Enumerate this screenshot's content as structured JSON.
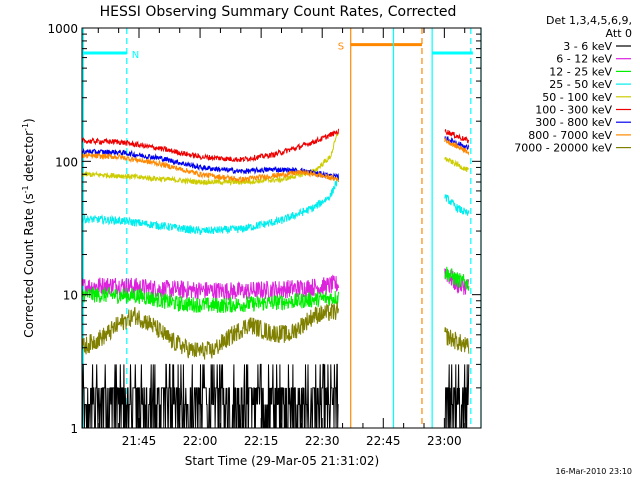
{
  "chart_data": {
    "type": "line",
    "title": "HESSI Observing Summary Count Rates, Corrected",
    "xlabel": "Start Time (29-Mar-05 21:31:02)",
    "ylabel_main": "Corrected Count Rate (s",
    "ylabel_sup1": "-1",
    "ylabel_mid": " detector",
    "ylabel_sup2": "-1",
    "ylabel_end": ")",
    "yscale": "log",
    "ylim": [
      1,
      1000
    ],
    "xlim_min": [
      31,
      129
    ],
    "x_ticks": [
      {
        "min": 45,
        "label": "21:45"
      },
      {
        "min": 60,
        "label": "22:00"
      },
      {
        "min": 75,
        "label": "22:15"
      },
      {
        "min": 90,
        "label": "22:30"
      },
      {
        "min": 105,
        "label": "22:45"
      },
      {
        "min": 120,
        "label": "23:00"
      }
    ],
    "y_ticks": [
      {
        "value": 1,
        "label": "1"
      },
      {
        "value": 10,
        "label": "10"
      },
      {
        "value": 100,
        "label": "100"
      },
      {
        "value": 1000,
        "label": "1000"
      }
    ],
    "legend_header": [
      "Det 1,3,4,5,6,9,",
      "Att 0"
    ],
    "legend_position": "right",
    "series": [
      {
        "name": "3 - 6 keV",
        "color": "#000000",
        "noise": 1.0,
        "points": [
          [
            31,
            1.6
          ],
          [
            37,
            1.5
          ],
          [
            45,
            1.6
          ],
          [
            55,
            1.4
          ],
          [
            65,
            1.5
          ],
          [
            75,
            1.6
          ],
          [
            85,
            1.5
          ],
          [
            94,
            1.7
          ],
          [
            95,
            null
          ],
          [
            119,
            null
          ],
          [
            120,
            1.5
          ],
          [
            126,
            1.6
          ]
        ]
      },
      {
        "name": "6 - 12 keV",
        "color": "#dd22dd",
        "noise": 0.07,
        "points": [
          [
            31,
            11.5
          ],
          [
            40,
            11.8
          ],
          [
            50,
            11
          ],
          [
            60,
            10.8
          ],
          [
            70,
            10.6
          ],
          [
            80,
            11
          ],
          [
            90,
            11.5
          ],
          [
            94,
            12
          ],
          [
            95,
            null
          ],
          [
            119,
            null
          ],
          [
            120,
            15
          ],
          [
            123,
            12
          ],
          [
            126,
            11.5
          ]
        ]
      },
      {
        "name": "12 - 25 keV",
        "color": "#00ee00",
        "noise": 0.06,
        "points": [
          [
            31,
            10
          ],
          [
            45,
            9.8
          ],
          [
            55,
            8.5
          ],
          [
            65,
            8.3
          ],
          [
            75,
            8.6
          ],
          [
            85,
            9
          ],
          [
            94,
            9.6
          ],
          [
            95,
            null
          ],
          [
            119,
            null
          ],
          [
            120,
            15
          ],
          [
            123,
            13
          ],
          [
            126,
            12
          ]
        ]
      },
      {
        "name": "25 - 50 keV",
        "color": "#00eeee",
        "noise": 0.03,
        "points": [
          [
            31,
            37
          ],
          [
            40,
            36
          ],
          [
            50,
            33
          ],
          [
            60,
            30
          ],
          [
            70,
            31
          ],
          [
            80,
            36
          ],
          [
            88,
            45
          ],
          [
            92,
            55
          ],
          [
            94,
            75
          ],
          [
            95,
            null
          ],
          [
            119,
            null
          ],
          [
            120,
            55
          ],
          [
            123,
            45
          ],
          [
            126,
            40
          ]
        ]
      },
      {
        "name": "50 - 100 keV",
        "color": "#cccc00",
        "noise": 0.02,
        "points": [
          [
            31,
            80
          ],
          [
            40,
            78
          ],
          [
            50,
            74
          ],
          [
            60,
            70
          ],
          [
            70,
            70
          ],
          [
            80,
            73
          ],
          [
            88,
            84
          ],
          [
            92,
            108
          ],
          [
            94,
            170
          ],
          [
            95,
            null
          ],
          [
            119,
            null
          ],
          [
            120,
            105
          ],
          [
            123,
            95
          ],
          [
            126,
            85
          ]
        ]
      },
      {
        "name": "100 - 300 keV",
        "color": "#ee0000",
        "noise": 0.02,
        "points": [
          [
            31,
            142
          ],
          [
            40,
            140
          ],
          [
            50,
            125
          ],
          [
            60,
            108
          ],
          [
            70,
            103
          ],
          [
            78,
            112
          ],
          [
            85,
            130
          ],
          [
            90,
            148
          ],
          [
            94,
            168
          ],
          [
            95,
            null
          ],
          [
            119,
            null
          ],
          [
            120,
            170
          ],
          [
            123,
            155
          ],
          [
            126,
            142
          ]
        ]
      },
      {
        "name": "300 - 800 keV",
        "color": "#0000ee",
        "noise": 0.02,
        "points": [
          [
            31,
            118
          ],
          [
            40,
            117
          ],
          [
            50,
            106
          ],
          [
            60,
            90
          ],
          [
            70,
            84
          ],
          [
            78,
            87
          ],
          [
            85,
            85
          ],
          [
            90,
            80
          ],
          [
            94,
            76
          ],
          [
            95,
            null
          ],
          [
            119,
            null
          ],
          [
            120,
            150
          ],
          [
            123,
            138
          ],
          [
            126,
            125
          ]
        ]
      },
      {
        "name": "800 - 7000 keV",
        "color": "#ff8800",
        "noise": 0.02,
        "points": [
          [
            31,
            110
          ],
          [
            40,
            108
          ],
          [
            50,
            96
          ],
          [
            60,
            80
          ],
          [
            70,
            73
          ],
          [
            78,
            78
          ],
          [
            85,
            83
          ],
          [
            90,
            78
          ],
          [
            94,
            73
          ],
          [
            95,
            null
          ],
          [
            119,
            null
          ],
          [
            120,
            145
          ],
          [
            123,
            130
          ],
          [
            126,
            118
          ]
        ]
      },
      {
        "name": "7000 - 20000 keV",
        "color": "#808000",
        "noise": 0.07,
        "points": [
          [
            31,
            4
          ],
          [
            37,
            5
          ],
          [
            40,
            6
          ],
          [
            44,
            7
          ],
          [
            48,
            6
          ],
          [
            53,
            4.5
          ],
          [
            58,
            3.8
          ],
          [
            63,
            3.8
          ],
          [
            68,
            5
          ],
          [
            72,
            6
          ],
          [
            77,
            5.2
          ],
          [
            82,
            5
          ],
          [
            88,
            7
          ],
          [
            94,
            7.5
          ],
          [
            95,
            null
          ],
          [
            119,
            null
          ],
          [
            120,
            5
          ],
          [
            126,
            4
          ]
        ]
      }
    ],
    "markers": [
      {
        "type": "night_bar",
        "x0": 31,
        "x1": 42,
        "y": 650,
        "label": "N",
        "color": "#00ffff"
      },
      {
        "type": "saa_bar",
        "x0": 97,
        "x1": 114.5,
        "y": 750,
        "label": "S",
        "color": "#ff8800"
      },
      {
        "type": "vline",
        "x": 31.3,
        "color": "#00ffff",
        "dash": false
      },
      {
        "type": "vline",
        "x": 42,
        "color": "#00ffff",
        "dash": true
      },
      {
        "type": "vline",
        "x": 97,
        "color": "#ff8800",
        "dash": false
      },
      {
        "type": "vline",
        "x": 107.5,
        "color": "#00ffff",
        "dash": false
      },
      {
        "type": "vline",
        "x": 114.5,
        "color": "#ff8800",
        "dash": true
      },
      {
        "type": "vline",
        "x": 126.5,
        "color": "#00ffff",
        "dash": true
      },
      {
        "type": "vline",
        "x": 117,
        "color": "#00ffff",
        "dash": false
      },
      {
        "type": "vline",
        "x": 129,
        "color": "#00ffff",
        "dash": false
      }
    ],
    "footer": "16-Mar-2010 23:10"
  }
}
